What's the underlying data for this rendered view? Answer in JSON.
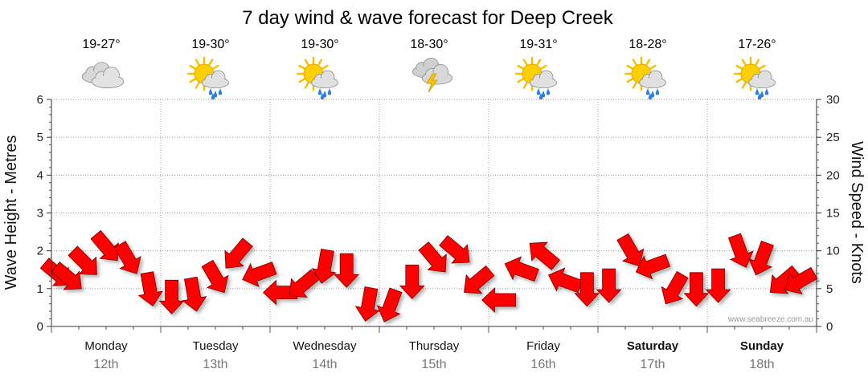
{
  "chart_data": {
    "type": "line",
    "title": "7 day wind & wave forecast for Deep Creek",
    "ylabel_left": "Wave Height - Metres",
    "ylabel_right": "Wind Speed - Knots",
    "ylim_left": [
      0,
      6
    ],
    "ylim_right": [
      0,
      30
    ],
    "yticks_left": [
      "0",
      "1",
      "2",
      "3",
      "4",
      "5",
      "6"
    ],
    "yticks_right": [
      "0",
      "5",
      "10",
      "15",
      "20",
      "25",
      "30"
    ],
    "grid": true,
    "watermark": "www.seabreeze.com.au",
    "days": [
      {
        "name": "Monday",
        "date": "12th",
        "temp": "19-27°",
        "icon": "cloudy-icon",
        "bold": false
      },
      {
        "name": "Tuesday",
        "date": "13th",
        "temp": "19-30°",
        "icon": "sun-showers-icon",
        "bold": false
      },
      {
        "name": "Wednesday",
        "date": "14th",
        "temp": "19-30°",
        "icon": "sun-showers-icon",
        "bold": false
      },
      {
        "name": "Thursday",
        "date": "15th",
        "temp": "18-30°",
        "icon": "thunderstorm-icon",
        "bold": false
      },
      {
        "name": "Friday",
        "date": "16th",
        "temp": "19-31°",
        "icon": "sun-showers-icon",
        "bold": false
      },
      {
        "name": "Saturday",
        "date": "17th",
        "temp": "18-28°",
        "icon": "sun-showers-icon",
        "bold": true
      },
      {
        "name": "Sunday",
        "date": "18th",
        "temp": "17-26°",
        "icon": "sun-showers-icon",
        "bold": true
      }
    ],
    "series": [
      {
        "name": "Wind Speed - Knots",
        "units": "knots",
        "color": "#ff0000",
        "x_days": [
          0.05,
          0.15,
          0.3,
          0.5,
          0.7,
          0.9,
          1.1,
          1.3,
          1.5,
          1.7,
          1.9,
          2.1,
          2.3,
          2.5,
          2.7,
          2.9,
          3.1,
          3.3,
          3.5,
          3.7,
          3.9,
          4.1,
          4.3,
          4.5,
          4.7,
          4.9,
          5.1,
          5.3,
          5.5,
          5.7,
          5.9,
          6.1,
          6.3,
          6.5,
          6.7,
          6.85
        ],
        "values": [
          7,
          6.5,
          8.5,
          10.5,
          9,
          5,
          4,
          4.3,
          6.5,
          9.5,
          7,
          4.5,
          5.5,
          8,
          7.5,
          3,
          2.8,
          6,
          9,
          10,
          6,
          3.5,
          7.5,
          9.5,
          6,
          5,
          5.5,
          10,
          8,
          5,
          5,
          5.5,
          10,
          9,
          6,
          6
        ],
        "direction_deg": [
          40,
          40,
          45,
          50,
          60,
          80,
          90,
          80,
          60,
          130,
          160,
          180,
          140,
          100,
          90,
          100,
          110,
          90,
          50,
          40,
          140,
          180,
          200,
          220,
          200,
          90,
          90,
          60,
          160,
          120,
          90,
          90,
          70,
          110,
          140,
          150
        ]
      }
    ]
  }
}
